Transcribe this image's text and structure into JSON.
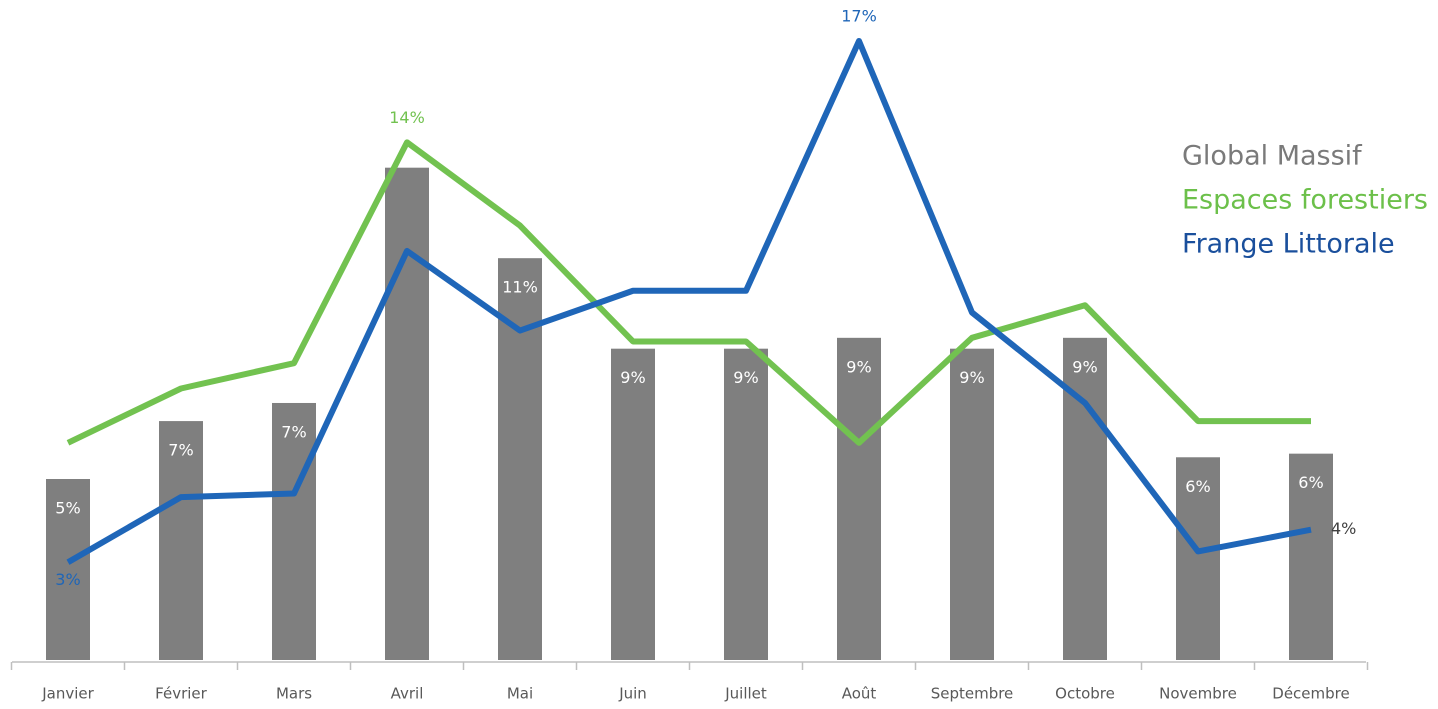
{
  "chart_data": {
    "type": "bar",
    "categories": [
      "Janvier",
      "Février",
      "Mars",
      "Avril",
      "Mai",
      "Juin",
      "Juillet",
      "Août",
      "Septembre",
      "Octobre",
      "Novembre",
      "Décembre"
    ],
    "series": [
      {
        "name": "Global Massif",
        "type": "bar",
        "color": "#7f7f7f",
        "values": [
          5.0,
          6.6,
          7.1,
          13.6,
          11.1,
          8.6,
          8.6,
          8.9,
          8.6,
          8.9,
          5.6,
          5.7
        ],
        "value_labels": [
          "5%",
          "7%",
          "7%",
          null,
          "11%",
          "9%",
          "9%",
          "9%",
          "9%",
          "9%",
          "6%",
          "6%"
        ]
      },
      {
        "name": "Espaces forestiers",
        "type": "line",
        "color": "#72c250",
        "values": [
          6.0,
          7.5,
          8.2,
          14.3,
          12.0,
          8.8,
          8.8,
          6.0,
          8.9,
          9.8,
          6.6,
          6.6
        ],
        "value_labels": [
          null,
          null,
          null,
          "14%",
          null,
          null,
          null,
          null,
          null,
          null,
          null,
          null
        ]
      },
      {
        "name": "Frange Littorale",
        "type": "line",
        "color": "#1f66b8",
        "values": [
          2.7,
          4.5,
          4.6,
          11.3,
          9.1,
          10.2,
          10.2,
          17.1,
          9.6,
          7.1,
          3.0,
          3.6
        ],
        "value_labels": [
          "3%",
          null,
          null,
          null,
          null,
          null,
          null,
          "17%",
          null,
          null,
          null,
          "4%"
        ]
      }
    ],
    "legend_colors": [
      "#7a7a7a",
      "#6cc04a",
      "#1a4f9c"
    ]
  }
}
